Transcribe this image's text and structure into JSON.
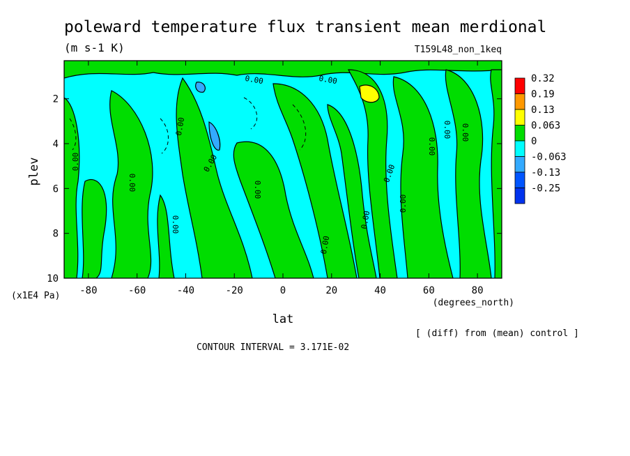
{
  "chart_data": {
    "type": "heatmap",
    "title": "poleward temperature flux transient mean merdional",
    "units": "(m s-1 K)",
    "experiment": "T159L48_non_1keq",
    "xlabel": "lat",
    "xunits": "(degrees_north)",
    "ylabel": "plev",
    "yunits": "(x1E4 Pa)",
    "xlim": [
      -90,
      90
    ],
    "ylim": [
      10,
      0.3
    ],
    "x_ticks": [
      -80,
      -60,
      -40,
      -20,
      0,
      20,
      40,
      60,
      80
    ],
    "x_tick_labels": [
      "-80",
      "-60",
      "-40",
      "-20",
      "0",
      "20",
      "40",
      "60",
      "80"
    ],
    "y_ticks": [
      2,
      4,
      6,
      8,
      10
    ],
    "y_tick_labels": [
      "2",
      "4",
      "6",
      "8",
      "10"
    ],
    "levels": [
      {
        "label": "0.32",
        "color": "#ff0000"
      },
      {
        "label": "0.19",
        "color": "#ff9900"
      },
      {
        "label": "0.13",
        "color": "#ffff00"
      },
      {
        "label": "0.063",
        "color": "#00dd00"
      },
      {
        "label": "0",
        "color": "#00ffff"
      },
      {
        "label": "-0.063",
        "color": "#33aaff"
      },
      {
        "label": "-0.13",
        "color": "#0055ff"
      },
      {
        "label": "-0.25",
        "color": "#0033ee"
      }
    ],
    "contour_line_label": "0.00",
    "note": "[ (diff) from (mean) control ]",
    "contour_interval": "CONTOUR INTERVAL = 3.171E-02"
  }
}
